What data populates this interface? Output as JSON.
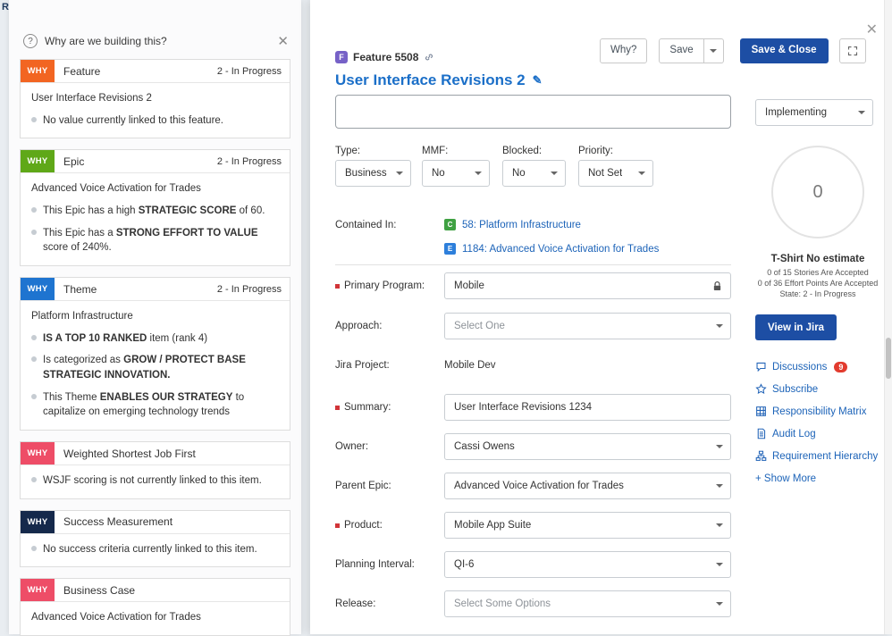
{
  "page": {
    "edge_text": "R"
  },
  "icons": {
    "close": "✕",
    "help": "?",
    "edit_pencil": "✎"
  },
  "why_panel": {
    "title": "Why are we building this?",
    "cards": [
      {
        "badge": "WHY",
        "badge_color": "#F26522",
        "name": "Feature",
        "status": "2 - In Progress",
        "items": [
          {
            "bullet": false,
            "segments": [
              {
                "text": "User Interface Revisions 2"
              }
            ]
          },
          {
            "bullet": true,
            "segments": [
              {
                "text": "No value currently linked to this feature."
              }
            ]
          }
        ]
      },
      {
        "badge": "WHY",
        "badge_color": "#5FA818",
        "name": "Epic",
        "status": "2 - In Progress",
        "items": [
          {
            "bullet": false,
            "segments": [
              {
                "text": "Advanced Voice Activation for Trades"
              }
            ]
          },
          {
            "bullet": true,
            "segments": [
              {
                "text": "This Epic has a high "
              },
              {
                "text": "STRATEGIC SCORE",
                "bold": true
              },
              {
                "text": " of 60."
              }
            ]
          },
          {
            "bullet": true,
            "segments": [
              {
                "text": "This Epic has a "
              },
              {
                "text": "STRONG EFFORT TO VALUE",
                "bold": true
              },
              {
                "text": " score of 240%."
              }
            ]
          }
        ]
      },
      {
        "badge": "WHY",
        "badge_color": "#1E74D0",
        "name": "Theme",
        "status": "2 - In Progress",
        "items": [
          {
            "bullet": false,
            "segments": [
              {
                "text": "Platform Infrastructure"
              }
            ]
          },
          {
            "bullet": true,
            "segments": [
              {
                "text": "IS A TOP 10 RANKED",
                "bold": true
              },
              {
                "text": " item (rank 4)"
              }
            ]
          },
          {
            "bullet": true,
            "segments": [
              {
                "text": "Is categorized as "
              },
              {
                "text": "GROW / PROTECT BASE STRATEGIC INNOVATION.",
                "bold": true
              }
            ]
          },
          {
            "bullet": true,
            "segments": [
              {
                "text": "This Theme "
              },
              {
                "text": "ENABLES OUR STRATEGY",
                "bold": true
              },
              {
                "text": " to capitalize on emerging technology trends"
              }
            ]
          }
        ]
      },
      {
        "badge": "WHY",
        "badge_color": "#EE4D67",
        "name": "Weighted Shortest Job First",
        "status": null,
        "items": [
          {
            "bullet": true,
            "segments": [
              {
                "text": "WSJF scoring is not currently linked to this item."
              }
            ]
          }
        ]
      },
      {
        "badge": "WHY",
        "badge_color": "#15294B",
        "name": "Success Measurement",
        "status": null,
        "items": [
          {
            "bullet": true,
            "segments": [
              {
                "text": "No success criteria currently linked to this item."
              }
            ]
          }
        ]
      },
      {
        "badge": "WHY",
        "badge_color": "#EE4D67",
        "name": "Business Case",
        "status": null,
        "items": [
          {
            "bullet": false,
            "segments": [
              {
                "text": "Advanced Voice Activation for Trades"
              }
            ]
          }
        ]
      }
    ]
  },
  "toolbar": {
    "why_label": "Why?",
    "save_label": "Save",
    "save_close_label": "Save & Close"
  },
  "header": {
    "item_label": "Feature 5508",
    "item_icon_letter": "F",
    "title": "User Interface Revisions 2"
  },
  "meta_row": [
    {
      "label": "Type:",
      "value": "Business"
    },
    {
      "label": "MMF:",
      "value": "No"
    },
    {
      "label": "Blocked:",
      "value": "No"
    },
    {
      "label": "Priority:",
      "value": "Not Set"
    }
  ],
  "contained_in": {
    "label": "Contained In:",
    "links": [
      {
        "text": "58: Platform Infrastructure",
        "icon": "capability-icon",
        "icon_letter": "C",
        "icon_color": "#3FA142"
      },
      {
        "text": "1184: Advanced Voice Activation for Trades",
        "icon": "epic-icon",
        "icon_letter": "E",
        "icon_color": "#2D7FDB"
      }
    ]
  },
  "form": {
    "rows": [
      {
        "label": "Primary Program:",
        "required": true,
        "control": "locked-input",
        "value": "Mobile",
        "is_placeholder": false
      },
      {
        "label": "Approach:",
        "required": false,
        "control": "select",
        "value": "Select One",
        "is_placeholder": true
      },
      {
        "label": "Jira Project:",
        "required": false,
        "control": "static",
        "value": "Mobile Dev",
        "is_placeholder": false
      },
      {
        "label": "Summary:",
        "required": true,
        "control": "input",
        "value": "User Interface Revisions 1234",
        "is_placeholder": false
      },
      {
        "label": "Owner:",
        "required": false,
        "control": "select",
        "value": "Cassi Owens",
        "is_placeholder": false
      },
      {
        "label": "Parent Epic:",
        "required": false,
        "control": "select",
        "value": "Advanced Voice Activation for Trades",
        "is_placeholder": false
      },
      {
        "label": "Product:",
        "required": true,
        "control": "select",
        "value": "Mobile App Suite",
        "is_placeholder": false
      },
      {
        "label": "Planning Interval:",
        "required": false,
        "control": "select",
        "value": "QI-6",
        "is_placeholder": false
      },
      {
        "label": "Release:",
        "required": false,
        "control": "select",
        "value": "Select Some Options",
        "is_placeholder": true
      }
    ]
  },
  "sidebar": {
    "state_value": "Implementing",
    "gauge_value": "0",
    "estimate_title": "T-Shirt No estimate",
    "estimate_lines": [
      "0 of 15 Stories Are Accepted",
      "0 of 36 Effort Points Are Accepted",
      "State: 2 - In Progress"
    ],
    "view_in_jira_label": "View in Jira",
    "links": [
      {
        "label": "Discussions",
        "icon": "discussion-icon",
        "badge": "9"
      },
      {
        "label": "Subscribe",
        "icon": "star-icon"
      },
      {
        "label": "Responsibility Matrix",
        "icon": "grid-icon"
      },
      {
        "label": "Audit Log",
        "icon": "document-icon"
      },
      {
        "label": "Requirement Hierarchy",
        "icon": "hierarchy-icon"
      },
      {
        "label": "+ Show More",
        "icon": null
      }
    ]
  },
  "colors": {
    "primary_button": "#1D4EA4",
    "link": "#1C63B8",
    "title": "#1B6FC8",
    "required_marker": "#D13438",
    "discussion_badge": "#E23B2E"
  }
}
